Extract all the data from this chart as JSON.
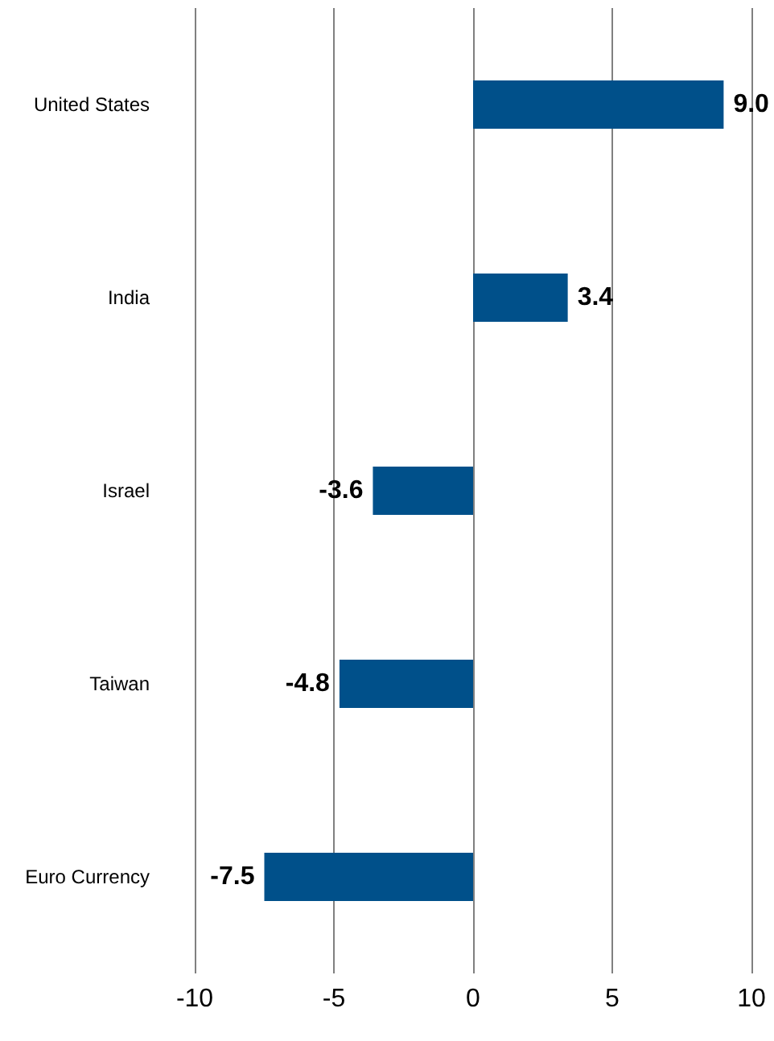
{
  "chart_data": {
    "type": "bar",
    "orientation": "horizontal",
    "categories": [
      "United States",
      "India",
      "Israel",
      "Taiwan",
      "Euro Currency"
    ],
    "values": [
      9.0,
      3.4,
      -3.6,
      -4.8,
      -7.5
    ],
    "color": "#00508a",
    "value_labels": [
      "9.0",
      "3.4",
      "-3.6",
      "-4.8",
      "-7.5"
    ],
    "xlim": [
      -10,
      10
    ],
    "xticks": [
      -10,
      -5,
      0,
      5,
      10
    ],
    "grid": "x"
  }
}
